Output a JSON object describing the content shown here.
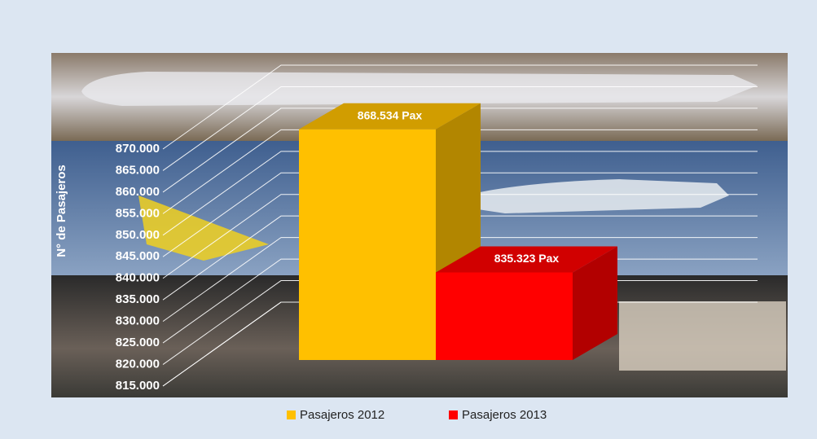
{
  "chart_data": {
    "type": "bar3d",
    "y_label": "N° de Pasajeros",
    "categories": [
      null
    ],
    "series": [
      {
        "name": "Pasajeros 2012",
        "color": "#ffc000",
        "values": [
          868534
        ],
        "value_labels": [
          "868.534 Pax"
        ]
      },
      {
        "name": "Pasajeros 2013",
        "color": "#ff0000",
        "values": [
          835323
        ],
        "value_labels": [
          "835.323 Pax"
        ]
      }
    ],
    "ylim": [
      815000,
      870000
    ],
    "yticks": [
      {
        "value": 815000,
        "label": "815.000"
      },
      {
        "value": 820000,
        "label": "820.000"
      },
      {
        "value": 825000,
        "label": "825.000"
      },
      {
        "value": 830000,
        "label": "830.000"
      },
      {
        "value": 835000,
        "label": "835.000"
      },
      {
        "value": 840000,
        "label": "840.000"
      },
      {
        "value": 845000,
        "label": "845.000"
      },
      {
        "value": 850000,
        "label": "850.000"
      },
      {
        "value": 855000,
        "label": "855.000"
      },
      {
        "value": 860000,
        "label": "860.000"
      },
      {
        "value": 865000,
        "label": "865.000"
      },
      {
        "value": 870000,
        "label": "870.000"
      }
    ],
    "grid": true,
    "legend": "bottom"
  }
}
